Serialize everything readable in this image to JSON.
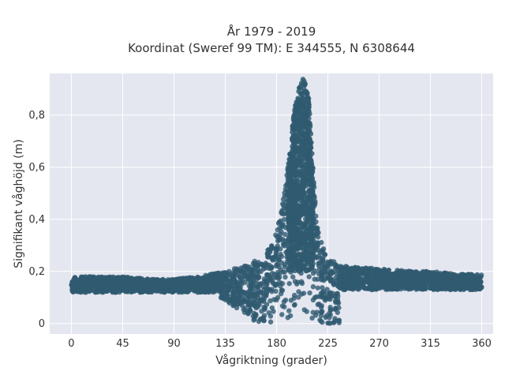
{
  "chart_data": {
    "type": "scatter",
    "title": [
      "År 1979 - 2019",
      "Koordinat (Sweref 99 TM): E 344555, N 6308644"
    ],
    "xlabel": "Vågriktning (grader)",
    "ylabel": "Signifikant våghöjd (m)",
    "xlim": [
      -19,
      370
    ],
    "ylim": [
      -0.04,
      0.96
    ],
    "xticks": [
      0,
      45,
      90,
      135,
      180,
      225,
      270,
      315,
      360
    ],
    "xtick_labels": [
      "0",
      "45",
      "90",
      "135",
      "180",
      "225",
      "270",
      "315",
      "360"
    ],
    "yticks": [
      0,
      0.2,
      0.4,
      0.6,
      0.8
    ],
    "ytick_labels": [
      "0",
      "0,2",
      "0,4",
      "0,6",
      "0,8"
    ],
    "grid": true,
    "colors": {
      "points": "#2f5a70",
      "plot_bg": "#e5e7f0",
      "grid": "#ffffff"
    },
    "series": [
      {
        "values_summary": "dense scatter of wave direction vs significant wave height",
        "x": [
          0,
          20,
          45,
          70,
          90,
          110,
          135,
          150,
          165,
          175,
          180,
          185,
          190,
          195,
          200,
          203,
          205,
          208,
          212,
          215,
          220,
          225,
          240,
          270,
          300,
          315,
          340,
          360
        ],
        "y": [
          0.18,
          0.18,
          0.18,
          0.17,
          0.17,
          0.18,
          0.2,
          0.22,
          0.25,
          0.3,
          0.35,
          0.45,
          0.6,
          0.8,
          0.92,
          0.94,
          0.93,
          0.88,
          0.6,
          0.4,
          0.3,
          0.25,
          0.22,
          0.21,
          0.2,
          0.2,
          0.19,
          0.19
        ]
      }
    ]
  }
}
